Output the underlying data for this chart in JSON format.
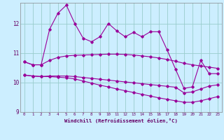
{
  "xlabel": "Windchill (Refroidissement éolien,°C)",
  "bg_color": "#cceeff",
  "line_color": "#990099",
  "grid_color": "#99cccc",
  "xlim": [
    -0.5,
    23.5
  ],
  "ylim": [
    9.0,
    12.7
  ],
  "xticks": [
    0,
    1,
    2,
    3,
    4,
    5,
    6,
    7,
    8,
    9,
    10,
    11,
    12,
    13,
    14,
    15,
    16,
    17,
    18,
    19,
    20,
    21,
    22,
    23
  ],
  "yticks": [
    9,
    10,
    11,
    12
  ],
  "series1": [
    10.7,
    10.6,
    10.6,
    11.8,
    12.35,
    12.62,
    12.0,
    11.5,
    11.38,
    11.55,
    12.0,
    11.75,
    11.55,
    11.7,
    11.55,
    11.72,
    11.72,
    11.1,
    10.45,
    9.8,
    9.85,
    10.75,
    10.3,
    10.3
  ],
  "series2": [
    10.7,
    10.6,
    10.6,
    10.75,
    10.85,
    10.9,
    10.92,
    10.93,
    10.94,
    10.95,
    10.96,
    10.96,
    10.95,
    10.93,
    10.9,
    10.87,
    10.83,
    10.78,
    10.72,
    10.65,
    10.6,
    10.56,
    10.52,
    10.48
  ],
  "series3": [
    10.25,
    10.22,
    10.2,
    10.22,
    10.22,
    10.22,
    10.2,
    10.17,
    10.14,
    10.11,
    10.08,
    10.05,
    10.02,
    9.99,
    9.96,
    9.93,
    9.9,
    9.87,
    9.84,
    9.65,
    9.68,
    9.78,
    9.88,
    9.92
  ],
  "series4": [
    10.25,
    10.22,
    10.2,
    10.2,
    10.18,
    10.16,
    10.12,
    10.05,
    9.98,
    9.91,
    9.85,
    9.78,
    9.72,
    9.66,
    9.6,
    9.54,
    9.48,
    9.43,
    9.38,
    9.33,
    9.33,
    9.38,
    9.45,
    9.52
  ]
}
